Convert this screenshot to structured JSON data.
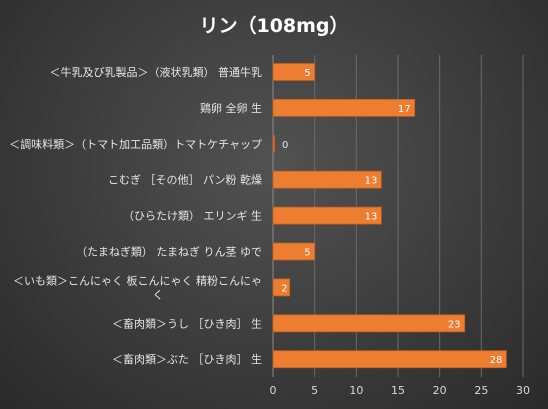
{
  "chart_data": {
    "type": "bar",
    "orientation": "horizontal",
    "title": "リン（108mg）",
    "categories": [
      "＜牛乳及び乳製品＞（液状乳類） 普通牛乳",
      "鶏卵 全卵 生",
      "＜調味料類＞（トマト加工品類）トマトケチャップ",
      "こむぎ ［その他］ パン粉 乾燥",
      "（ひらたけ類） エリンギ 生",
      "（たまねぎ類） たまねぎ りん茎 ゆで",
      "＜いも類＞こんにゃく 板こんにゃく 精粉こんにゃく",
      "＜畜肉類＞うし ［ひき肉］ 生",
      "＜畜肉類＞ぶた ［ひき肉］ 生"
    ],
    "category_lines": [
      [
        "＜牛乳及び乳製品＞（液状乳類） 普通牛乳"
      ],
      [
        "鶏卵 全卵 生"
      ],
      [
        "＜調味料類＞（トマト加工品類）トマトケチャップ"
      ],
      [
        "こむぎ ［その他］ パン粉 乾燥"
      ],
      [
        "（ひらたけ類） エリンギ 生"
      ],
      [
        "（たまねぎ類） たまねぎ りん茎 ゆで"
      ],
      [
        "＜いも類＞こんにゃく 板こんにゃく 精粉こんにゃ",
        "く"
      ],
      [
        "＜畜肉類＞うし ［ひき肉］ 生"
      ],
      [
        "＜畜肉類＞ぶた ［ひき肉］ 生"
      ]
    ],
    "values": [
      5,
      17,
      0,
      13,
      13,
      5,
      2,
      23,
      28
    ],
    "xlim": [
      0,
      30
    ],
    "xticks": [
      0,
      5,
      10,
      15,
      20,
      25,
      30
    ],
    "xlabel": "",
    "ylabel": "",
    "grid": true,
    "legend": "none",
    "colors": {
      "bar_fill": "#ed7d31",
      "bar_stroke": "#c0601e",
      "grid": "#6a6a6a",
      "text": "#e6e6e6",
      "title": "#ffffff"
    }
  }
}
